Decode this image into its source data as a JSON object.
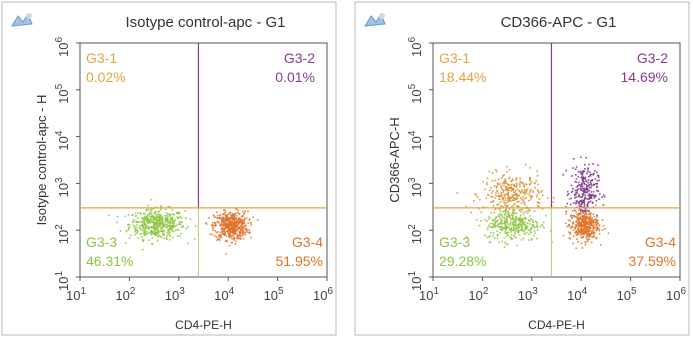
{
  "chart_data": [
    {
      "type": "scatter",
      "title": "Isotype control-apc - G1",
      "xlabel": "CD4-PE-H",
      "ylabel": "Isotype control-apc - H",
      "x_scale": "log",
      "y_scale": "log",
      "xlim": [
        10,
        1000000
      ],
      "ylim": [
        10,
        1000000
      ],
      "x_ticks": [
        {
          "value": 10,
          "base": "10",
          "exp": "1"
        },
        {
          "value": 100,
          "base": "10",
          "exp": "2"
        },
        {
          "value": 1000,
          "base": "10",
          "exp": "3"
        },
        {
          "value": 10000,
          "base": "10",
          "exp": "4"
        },
        {
          "value": 100000,
          "base": "10",
          "exp": "5"
        },
        {
          "value": 1000000,
          "base": "10",
          "exp": "6"
        }
      ],
      "y_ticks": [
        {
          "value": 10,
          "base": "10",
          "exp": "1"
        },
        {
          "value": 100,
          "base": "10",
          "exp": "2"
        },
        {
          "value": 1000,
          "base": "10",
          "exp": "3"
        },
        {
          "value": 10000,
          "base": "10",
          "exp": "4"
        },
        {
          "value": 100000,
          "base": "10",
          "exp": "5"
        },
        {
          "value": 1000000,
          "base": "10",
          "exp": "6"
        }
      ],
      "gate": {
        "x": 2500,
        "y": 300
      },
      "quadrants": [
        {
          "name": "G3-1",
          "percent": "0.02%",
          "position": "top-left",
          "color": "#e8a33c"
        },
        {
          "name": "G3-2",
          "percent": "0.01%",
          "position": "top-right",
          "color": "#8b3a8f"
        },
        {
          "name": "G3-3",
          "percent": "46.31%",
          "position": "bottom-left",
          "color": "#8cc63f"
        },
        {
          "name": "G3-4",
          "percent": "51.95%",
          "position": "bottom-right",
          "color": "#e0732a"
        }
      ],
      "populations": [
        {
          "quadrant": "G3-3",
          "x_center": 350,
          "y_center": 140,
          "spread_x": 0.28,
          "spread_y": 0.16,
          "count": 480,
          "color": "#8cc63f"
        },
        {
          "quadrant": "G3-4",
          "x_center": 11000,
          "y_center": 130,
          "spread_x": 0.17,
          "spread_y": 0.15,
          "count": 520,
          "color": "#e0732a"
        }
      ]
    },
    {
      "type": "scatter",
      "title": "CD366-APC - G1",
      "xlabel": "CD4-PE-H",
      "ylabel": "CD366-APC-H",
      "x_scale": "log",
      "y_scale": "log",
      "xlim": [
        10,
        1000000
      ],
      "ylim": [
        10,
        1000000
      ],
      "x_ticks": [
        {
          "value": 10,
          "base": "10",
          "exp": "1"
        },
        {
          "value": 100,
          "base": "10",
          "exp": "2"
        },
        {
          "value": 1000,
          "base": "10",
          "exp": "3"
        },
        {
          "value": 10000,
          "base": "10",
          "exp": "4"
        },
        {
          "value": 100000,
          "base": "10",
          "exp": "5"
        },
        {
          "value": 1000000,
          "base": "10",
          "exp": "6"
        }
      ],
      "y_ticks": [
        {
          "value": 10,
          "base": "10",
          "exp": "1"
        },
        {
          "value": 100,
          "base": "10",
          "exp": "2"
        },
        {
          "value": 1000,
          "base": "10",
          "exp": "3"
        },
        {
          "value": 10000,
          "base": "10",
          "exp": "4"
        },
        {
          "value": 100000,
          "base": "10",
          "exp": "5"
        },
        {
          "value": 1000000,
          "base": "10",
          "exp": "6"
        }
      ],
      "gate": {
        "x": 2500,
        "y": 300
      },
      "quadrants": [
        {
          "name": "G3-1",
          "percent": "18.44%",
          "position": "top-left",
          "color": "#e8a33c"
        },
        {
          "name": "G3-2",
          "percent": "14.69%",
          "position": "top-right",
          "color": "#8b3a8f"
        },
        {
          "name": "G3-3",
          "percent": "29.28%",
          "position": "bottom-left",
          "color": "#8cc63f"
        },
        {
          "name": "G3-4",
          "percent": "37.59%",
          "position": "bottom-right",
          "color": "#e0732a"
        }
      ],
      "populations": [
        {
          "quadrant": "G3-1",
          "x_center": 400,
          "y_center": 600,
          "spread_x": 0.3,
          "spread_y": 0.22,
          "count": 320,
          "color": "#d98c2a"
        },
        {
          "quadrant": "G3-2",
          "x_center": 11000,
          "y_center": 700,
          "spread_x": 0.14,
          "spread_y": 0.28,
          "count": 260,
          "color": "#7a2f86"
        },
        {
          "quadrant": "G3-3",
          "x_center": 400,
          "y_center": 140,
          "spread_x": 0.28,
          "spread_y": 0.18,
          "count": 340,
          "color": "#8cc63f"
        },
        {
          "quadrant": "G3-4",
          "x_center": 11000,
          "y_center": 130,
          "spread_x": 0.15,
          "spread_y": 0.16,
          "count": 380,
          "color": "#e0732a"
        }
      ]
    }
  ]
}
